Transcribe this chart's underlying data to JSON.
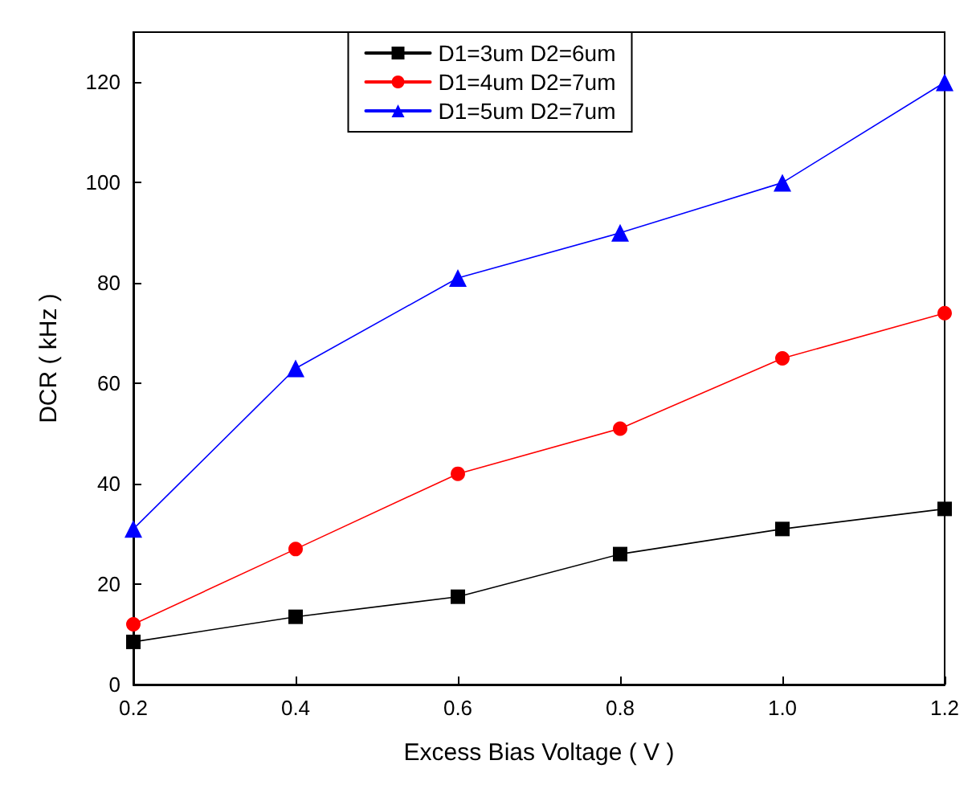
{
  "chart_data": {
    "type": "line",
    "xlabel": "Excess Bias Voltage ( V )",
    "ylabel": "DCR ( kHz )",
    "x": [
      0.2,
      0.4,
      0.6,
      0.8,
      1.0,
      1.2
    ],
    "xlim": [
      0.2,
      1.2
    ],
    "xticks": [
      0.2,
      0.4,
      0.6,
      0.8,
      {
        "value": 1,
        "label": "1.0"
      },
      1.2
    ],
    "ylim": [
      0,
      130
    ],
    "yticks": [
      0,
      20,
      40,
      60,
      80,
      100,
      120
    ],
    "grid": false,
    "legend": "top",
    "line_style": "solid",
    "series": [
      {
        "name": "D1=3um D2=6um",
        "color": "#000000",
        "marker": "square",
        "values": [
          8.5,
          13.5,
          17.5,
          26,
          31,
          35
        ]
      },
      {
        "name": "D1=4um D2=7um",
        "color": "#ff0000",
        "marker": "circle",
        "values": [
          12,
          27,
          42,
          51,
          65,
          74
        ]
      },
      {
        "name": "D1=5um D2=7um",
        "color": "#0000ff",
        "marker": "triangle",
        "values": [
          31,
          63,
          81,
          90,
          100,
          120
        ]
      }
    ]
  }
}
